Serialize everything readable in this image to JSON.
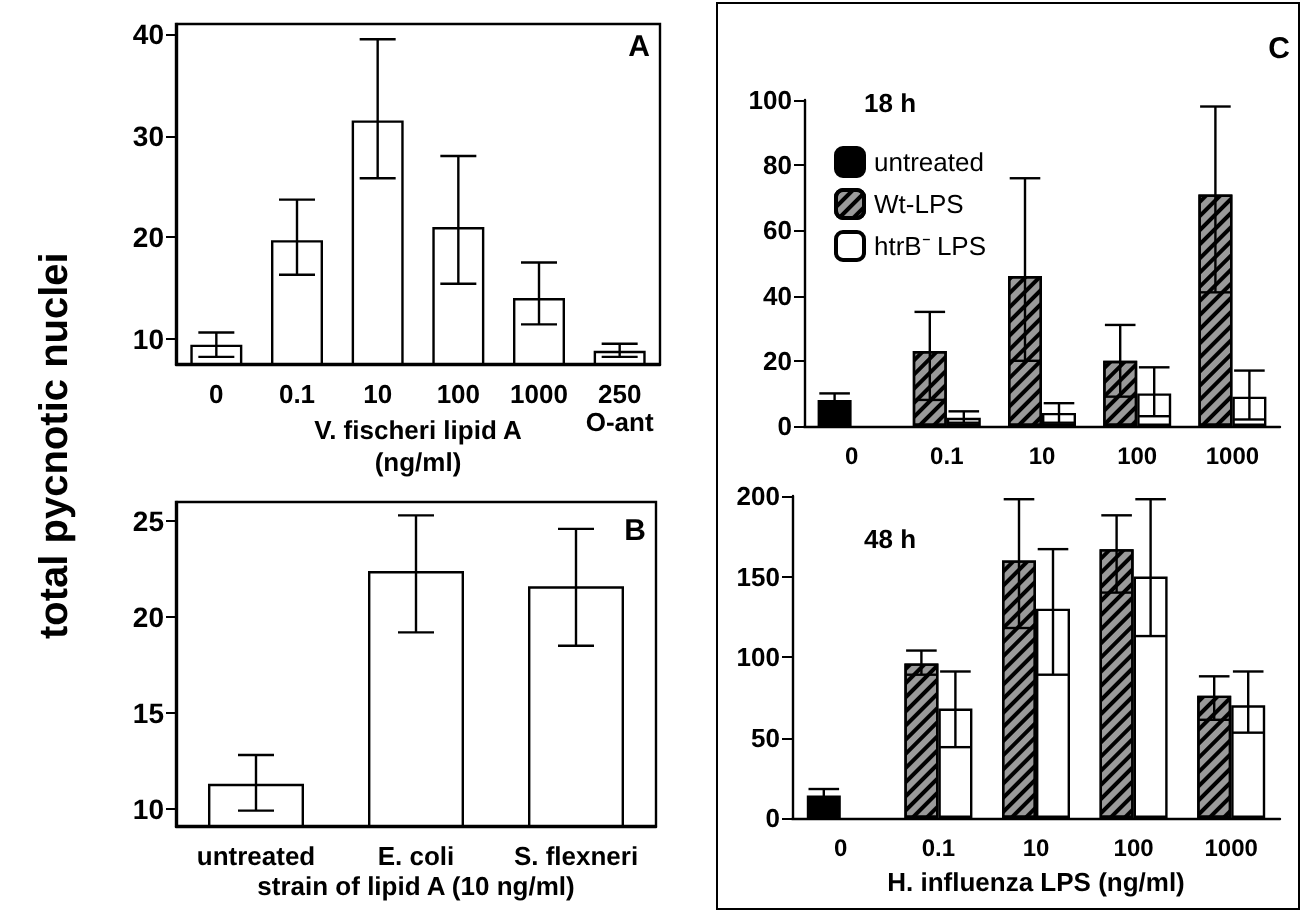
{
  "chart_data": [
    {
      "type": "bar",
      "categories": [
        "0",
        "0.1",
        "10",
        "100",
        "1000",
        "250\nO-ant"
      ],
      "values": [
        9.4,
        19.7,
        31.5,
        21,
        14,
        8.8
      ],
      "errors": [
        [
          8.2,
          10.6
        ],
        [
          16.3,
          23.7
        ],
        [
          25.8,
          39.5
        ],
        [
          15.4,
          28
        ],
        [
          11.4,
          17.5
        ],
        [
          8.2,
          9.5
        ]
      ],
      "color": "#ffffff",
      "ylim": [
        7.5,
        41
      ],
      "yticks": [
        10,
        20,
        30,
        40
      ],
      "xlabel": "V. fischeri lipid A\n(ng/ml)",
      "ylabel": "total pycnotic nuclei",
      "annotations": [
        "A"
      ],
      "grid": false
    },
    {
      "type": "bar",
      "categories": [
        "untreated",
        "E. coli",
        "S. flexneri"
      ],
      "values": [
        11.3,
        22.4,
        21.6
      ],
      "errors": [
        [
          9.9,
          12.8
        ],
        [
          19.2,
          25.3
        ],
        [
          18.5,
          24.6
        ]
      ],
      "color": "#ffffff",
      "ylim": [
        9.1,
        26
      ],
      "yticks": [
        10,
        15,
        20,
        25
      ],
      "xlabel": "strain of lipid A (10 ng/ml)",
      "annotations": [
        "B"
      ],
      "grid": false
    },
    {
      "type": "bar",
      "categories": [
        "0",
        "0.1",
        "10",
        "100",
        "1000"
      ],
      "series": [
        {
          "name": "untreated",
          "color": "#000000",
          "values": [
            8,
            null,
            null,
            null,
            null
          ],
          "errors": [
            2,
            null,
            null,
            null,
            null
          ]
        },
        {
          "name": "Wt-LPS",
          "color": "#9a9a9a",
          "values": [
            null,
            23,
            46,
            20,
            71
          ],
          "errors": [
            null,
            [
              8,
              35
            ],
            [
              20,
              76
            ],
            [
              9,
              31
            ],
            [
              41,
              98
            ]
          ]
        },
        {
          "name": "htrB⁻ LPS",
          "color": "#ffffff",
          "values": [
            null,
            2.5,
            4,
            10,
            9
          ],
          "errors": [
            null,
            [
              1,
              4.5
            ],
            3,
            [
              3,
              18
            ],
            [
              2,
              17
            ]
          ]
        }
      ],
      "ylim": [
        0,
        100
      ],
      "yticks": [
        0,
        20,
        40,
        60,
        80,
        100
      ],
      "annotations": [
        "C",
        "18 h"
      ],
      "legend": "top left",
      "grid": false
    },
    {
      "type": "bar",
      "categories": [
        "0",
        "0.1",
        "10",
        "100",
        "1000"
      ],
      "series": [
        {
          "color": "#000000",
          "values": [
            14,
            null,
            null,
            null,
            null
          ],
          "errors": [
            4,
            null,
            null,
            null,
            null
          ]
        },
        {
          "color": "#9a9a9a",
          "values": [
            null,
            96,
            160,
            167,
            76
          ],
          "errors": [
            null,
            [
              89,
              104
            ],
            [
              118,
              198
            ],
            [
              140,
              188
            ],
            [
              61,
              88
            ]
          ]
        },
        {
          "color": "#ffffff",
          "values": [
            null,
            68,
            130,
            150,
            70
          ],
          "errors": [
            null,
            [
              44,
              91
            ],
            [
              89,
              167
            ],
            [
              113,
              198
            ],
            [
              53,
              91
            ]
          ]
        }
      ],
      "ylim": [
        0,
        200
      ],
      "yticks": [
        0,
        50,
        100,
        150,
        200
      ],
      "xlabel": "H. influenza LPS (ng/ml)",
      "annotations": [
        "48 h"
      ],
      "grid": false
    }
  ]
}
